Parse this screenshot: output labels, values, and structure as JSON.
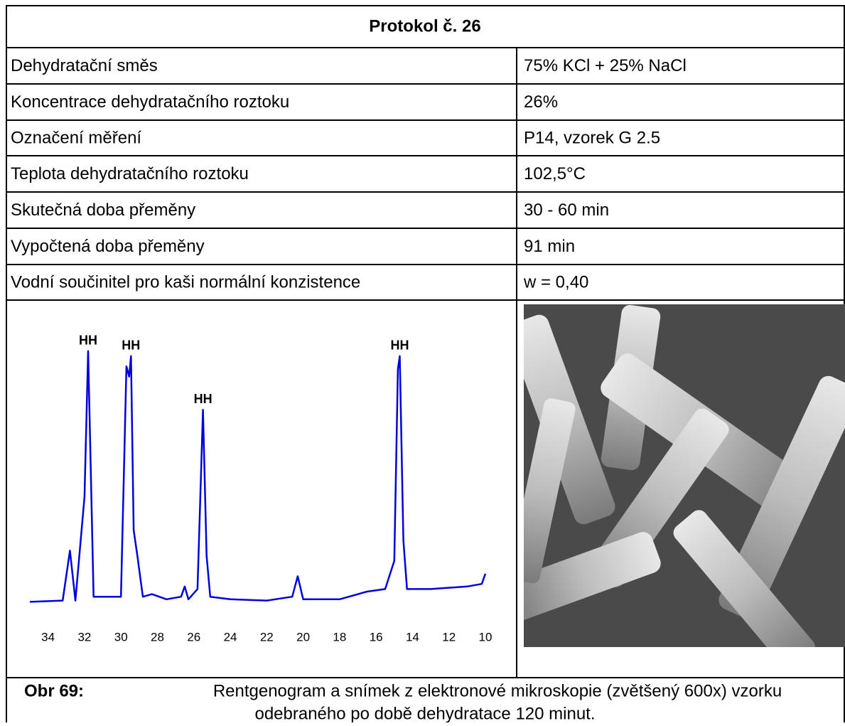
{
  "table": {
    "title": "Protokol č. 26",
    "rows": [
      [
        "Dehydratační směs",
        "75% KCl + 25% NaCl"
      ],
      [
        "Koncentrace dehydratačního roztoku",
        "26%"
      ],
      [
        "Označení měření",
        "P14, vzorek G 2.5"
      ],
      [
        "Teplota dehydratačního roztoku",
        "102,5°C"
      ],
      [
        "Skutečná doba přeměny",
        "30 - 60 min"
      ],
      [
        "Vypočtená doba přeměny",
        "91 min"
      ],
      [
        "Vodní součinitel pro kaši normální konzistence",
        "w = 0,40"
      ]
    ]
  },
  "chart_data": {
    "type": "line",
    "color": "#0000dd",
    "x": [
      35,
      33.2,
      32.8,
      32.5,
      32.0,
      31.8,
      31.5,
      30.0,
      29.7,
      29.55,
      29.45,
      29.3,
      29.1,
      28.8,
      28.3,
      27.5,
      26.7,
      26.5,
      26.3,
      25.8,
      25.5,
      25.3,
      25.1,
      24,
      22,
      20.6,
      20.3,
      20.0,
      18,
      16.5,
      15.5,
      15.0,
      14.8,
      14.7,
      14.5,
      14.3,
      13,
      11,
      10.2,
      10
    ],
    "values": [
      1,
      1.5,
      21,
      1.5,
      42,
      99,
      3,
      3,
      93,
      89,
      97,
      29,
      19,
      3,
      4,
      2,
      3,
      7,
      2,
      6,
      76,
      19,
      3,
      2,
      1.5,
      3,
      11,
      2,
      2,
      5,
      6,
      17,
      92,
      97,
      25,
      6,
      6,
      7,
      8,
      12
    ],
    "xlim": [
      35,
      10
    ],
    "ylim": [
      0,
      100
    ],
    "xticks": [
      34,
      32,
      30,
      28,
      26,
      24,
      22,
      20,
      18,
      16,
      14,
      12,
      10
    ],
    "annotations": [
      {
        "text": "HH",
        "x": 31.8
      },
      {
        "text": "HH",
        "x": 29.45
      },
      {
        "text": "HH",
        "x": 25.5
      },
      {
        "text": "HH",
        "x": 14.7
      }
    ]
  },
  "caption": {
    "label": "Obr 69:",
    "lines": [
      "Rentgenogram a snímek z elektronové mikroskopie (zvětšený 600x) vzorku",
      "odebraného po době dehydratace 120 minut."
    ]
  }
}
